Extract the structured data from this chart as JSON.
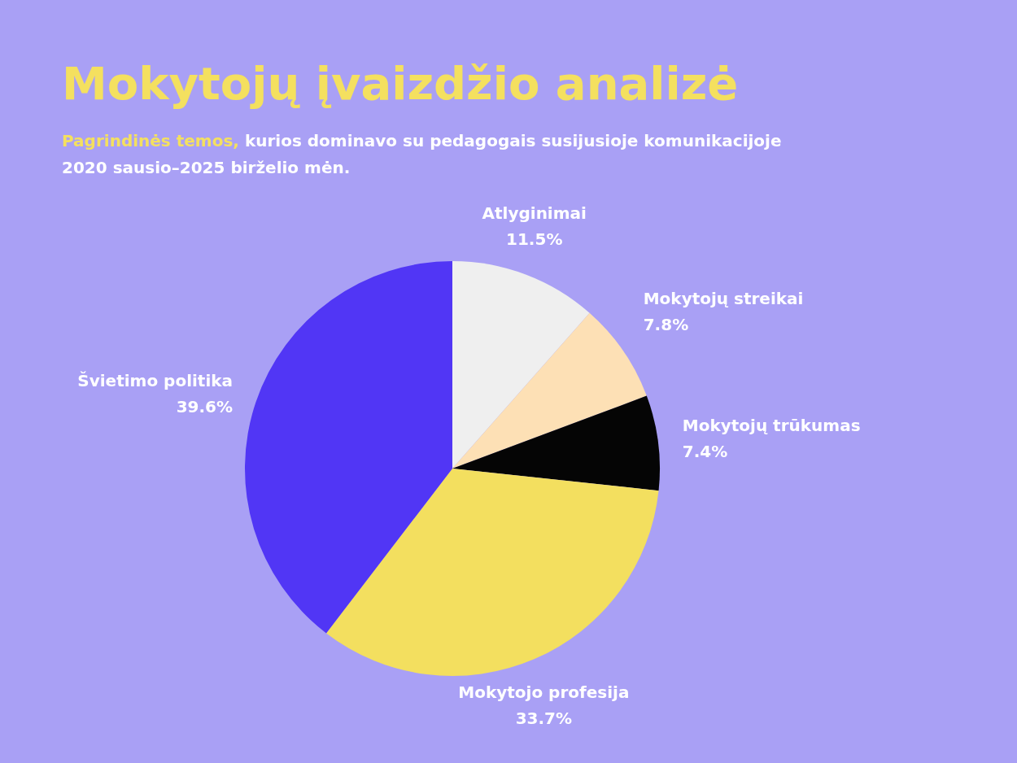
{
  "chart_data": {
    "type": "pie",
    "title": "Mokytojų įvaizdžio analizė",
    "subtitle": "Pagrindinės temos, kurios dominavo su pedagogais susijusioje komunikacijoje 2020 sausio–2025 birželio mėn.",
    "categories": [
      "Atlyginimai",
      "Mokytojų streikai",
      "Mokytojų trūkumas",
      "Mokytojo profesija",
      "Švietimo politika"
    ],
    "values": [
      11.5,
      7.8,
      7.4,
      33.7,
      39.6
    ],
    "value_labels": [
      "11.5%",
      "7.8%",
      "7.4%",
      "33.7%",
      "39.6%"
    ],
    "colors": [
      "#efefef",
      "#fde0b5",
      "#050505",
      "#f3df5f",
      "#5136f5"
    ],
    "legend": false
  }
}
